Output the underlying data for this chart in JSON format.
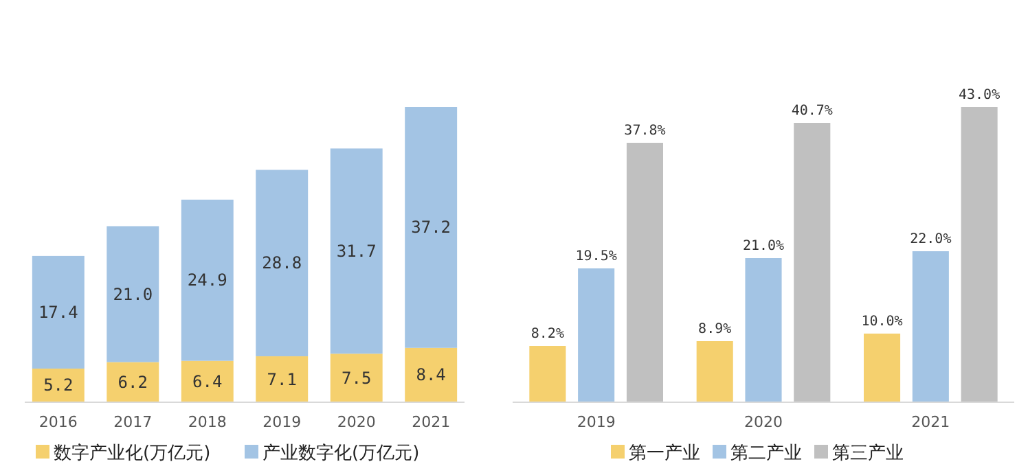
{
  "chart_data": [
    {
      "type": "bar",
      "stacked": true,
      "categories": [
        "2016",
        "2017",
        "2018",
        "2019",
        "2020",
        "2021"
      ],
      "legend": "bottom",
      "series": [
        {
          "name": "数字产业化(万亿元)",
          "color": "#f5d06e",
          "values": [
            5.2,
            6.2,
            6.4,
            7.1,
            7.5,
            8.4
          ],
          "value_labels": [
            "5.2",
            "6.2",
            "6.4",
            "7.1",
            "7.5",
            "8.4"
          ]
        },
        {
          "name": "产业数字化(万亿元)",
          "color": "#a3c4e4",
          "values": [
            17.4,
            21.0,
            24.9,
            28.8,
            31.7,
            37.2
          ],
          "value_labels": [
            "17.4",
            "21.0",
            "24.9",
            "28.8",
            "31.7",
            "37.2"
          ]
        }
      ]
    },
    {
      "type": "bar",
      "categories": [
        "2019",
        "2020",
        "2021"
      ],
      "legend": "bottom",
      "series": [
        {
          "name": "第一产业",
          "color": "#f5d06e",
          "values": [
            8.2,
            8.9,
            10.0
          ],
          "value_labels": [
            "8.2%",
            "8.9%",
            "10.0%"
          ]
        },
        {
          "name": "第二产业",
          "color": "#a3c4e4",
          "values": [
            19.5,
            21.0,
            22.0
          ],
          "value_labels": [
            "19.5%",
            "21.0%",
            "22.0%"
          ]
        },
        {
          "name": "第三产业",
          "color": "#c0c0c0",
          "values": [
            37.8,
            40.7,
            43.0
          ],
          "value_labels": [
            "37.8%",
            "40.7%",
            "43.0%"
          ]
        }
      ]
    }
  ]
}
